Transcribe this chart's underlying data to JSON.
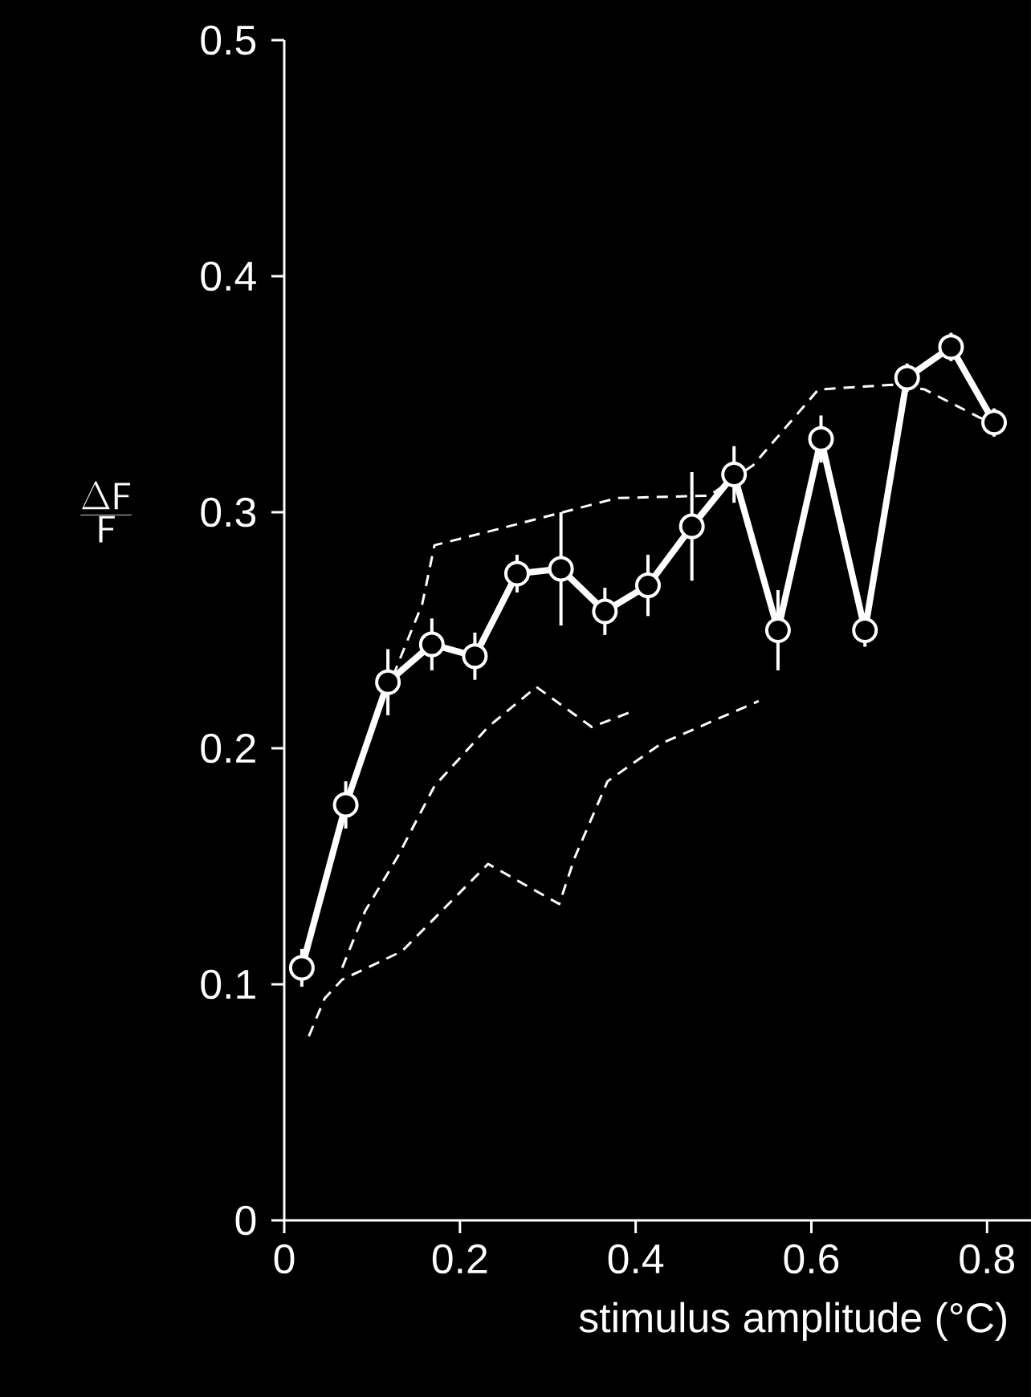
{
  "chart_data": {
    "type": "line",
    "xlabel": "stimulus amplitude (°C)",
    "ylabel": "\\frac{\\Delta\\mathsf{F}}{\\mathsf{F}}",
    "xlim": [
      0,
      0.85
    ],
    "ylim": [
      0,
      0.5
    ],
    "xticks": [
      0,
      0.2,
      0.4,
      0.6,
      0.8
    ],
    "yticks": [
      0,
      0.1,
      0.2,
      0.3,
      0.4,
      0.5
    ],
    "grid": false,
    "series": [
      {
        "color": "#ffffff",
        "line_style": "dashed",
        "marker": "none",
        "x": [
          0.07,
          0.11,
          0.157,
          0.171,
          0.245,
          0.379,
          0.484,
          0.534,
          0.608,
          0.692,
          0.729,
          0.792,
          0.808
        ],
        "values": [
          0.177,
          0.218,
          0.261,
          0.286,
          0.293,
          0.306,
          0.307,
          0.32,
          0.352,
          0.354,
          0.352,
          0.34,
          0.338
        ]
      },
      {
        "color": "#ffffff",
        "line_style": "dashed",
        "marker": "none",
        "x": [
          0.066,
          0.092,
          0.129,
          0.171,
          0.232,
          0.287,
          0.35,
          0.392
        ],
        "values": [
          0.107,
          0.131,
          0.154,
          0.184,
          0.209,
          0.226,
          0.209,
          0.215
        ]
      },
      {
        "color": "#ffffff",
        "line_style": "dashed",
        "marker": "none",
        "x": [
          0.028,
          0.046,
          0.066,
          0.134,
          0.232,
          0.313,
          0.331,
          0.368,
          0.429,
          0.54
        ],
        "values": [
          0.078,
          0.094,
          0.102,
          0.114,
          0.151,
          0.134,
          0.154,
          0.186,
          0.202,
          0.22
        ]
      },
      {
        "color": "#ffffff",
        "line_style": "solid",
        "marker": "circle",
        "x": [
          0.02,
          0.07,
          0.118,
          0.168,
          0.217,
          0.265,
          0.315,
          0.365,
          0.414,
          0.464,
          0.512,
          0.562,
          0.611,
          0.661,
          0.709,
          0.759,
          0.808
        ],
        "values": [
          0.107,
          0.176,
          0.228,
          0.244,
          0.239,
          0.274,
          0.276,
          0.258,
          0.269,
          0.294,
          0.316,
          0.25,
          0.331,
          0.25,
          0.357,
          0.37,
          0.338
        ],
        "errors": [
          0.008,
          0.01,
          0.014,
          0.011,
          0.01,
          0.008,
          0.024,
          0.01,
          0.013,
          0.023,
          0.012,
          0.017,
          0.01,
          0.007,
          0.006,
          0.006,
          0.006
        ]
      }
    ]
  }
}
